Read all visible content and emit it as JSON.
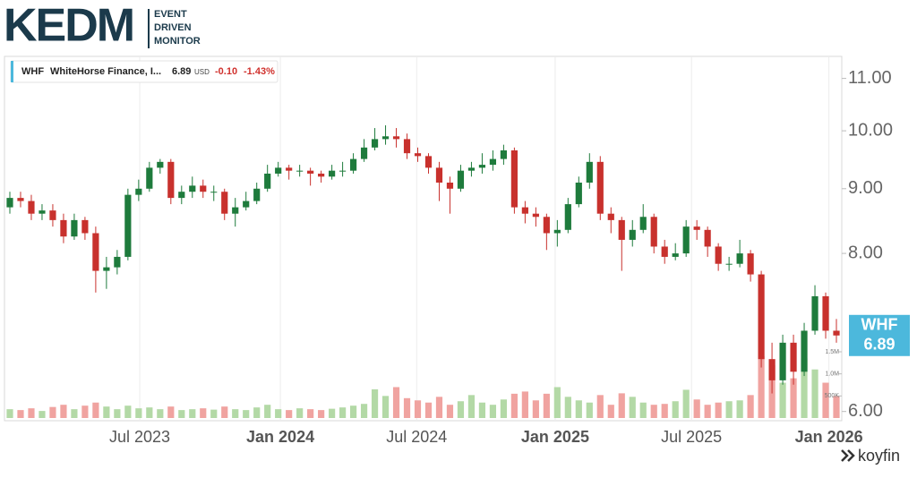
{
  "header": {
    "logo": "KEDM",
    "tagline": [
      "EVENT",
      "DRIVEN",
      "MONITOR"
    ]
  },
  "ticker_box": {
    "symbol": "WHF",
    "name": "WhiteHorse Finance, I...",
    "price": "6.89",
    "currency": "USD",
    "change": "-0.10",
    "change_pct": "-1.43%"
  },
  "chart_data": {
    "type": "candlestick",
    "symbol": "WHF",
    "open": [
      8.7,
      8.85,
      8.8,
      8.6,
      8.65,
      8.5,
      8.25,
      8.5,
      8.3,
      7.75,
      7.8,
      7.95,
      8.9,
      9.0,
      9.35,
      9.45,
      8.85,
      8.95,
      9.05,
      8.95,
      8.95,
      8.6,
      8.7,
      8.8,
      9.0,
      9.25,
      9.35,
      9.3,
      9.3,
      9.25,
      9.2,
      9.3,
      9.3,
      9.5,
      9.7,
      9.85,
      9.9,
      9.85,
      9.6,
      9.55,
      9.35,
      9.1,
      9.0,
      9.3,
      9.35,
      9.4,
      9.5,
      9.65,
      8.7,
      8.6,
      8.55,
      8.3,
      8.35,
      8.75,
      9.1,
      9.45,
      8.6,
      8.5,
      8.2,
      8.35,
      8.55,
      8.1,
      7.95,
      8.0,
      8.4,
      8.35,
      8.1,
      7.85,
      7.85,
      8.0,
      7.7,
      6.6,
      6.35,
      6.8,
      6.45,
      6.95,
      7.4,
      6.95
    ],
    "high": [
      8.95,
      8.95,
      8.9,
      8.75,
      8.75,
      8.6,
      8.6,
      8.55,
      8.4,
      7.95,
      8.05,
      9.0,
      9.15,
      9.45,
      9.5,
      9.5,
      9.05,
      9.2,
      9.15,
      9.05,
      9.0,
      8.85,
      8.95,
      9.1,
      9.4,
      9.45,
      9.4,
      9.4,
      9.35,
      9.3,
      9.4,
      9.45,
      9.6,
      9.85,
      10.05,
      10.1,
      10.05,
      9.95,
      9.7,
      9.6,
      9.45,
      9.2,
      9.4,
      9.45,
      9.6,
      9.65,
      9.75,
      9.7,
      8.8,
      8.7,
      8.6,
      8.5,
      8.85,
      9.2,
      9.6,
      9.55,
      8.7,
      8.55,
      8.5,
      8.75,
      8.6,
      8.2,
      8.15,
      8.5,
      8.5,
      8.4,
      8.15,
      7.95,
      8.2,
      8.05,
      7.75,
      6.8,
      6.9,
      6.9,
      7.05,
      7.55,
      7.45,
      7.1
    ],
    "low": [
      8.6,
      8.7,
      8.5,
      8.5,
      8.4,
      8.15,
      8.2,
      8.2,
      7.45,
      7.5,
      7.7,
      7.9,
      8.8,
      8.95,
      9.25,
      8.75,
      8.75,
      8.85,
      8.85,
      8.8,
      8.5,
      8.4,
      8.65,
      8.75,
      8.95,
      9.2,
      9.15,
      9.2,
      9.05,
      9.1,
      9.15,
      9.2,
      9.25,
      9.45,
      9.65,
      9.75,
      9.7,
      9.5,
      9.45,
      9.25,
      8.8,
      8.6,
      8.95,
      9.2,
      9.25,
      9.3,
      9.4,
      8.6,
      8.45,
      8.4,
      8.05,
      8.1,
      8.3,
      8.7,
      9.0,
      8.5,
      8.3,
      7.75,
      8.1,
      8.3,
      8.0,
      7.85,
      7.9,
      7.95,
      8.2,
      7.95,
      7.75,
      7.75,
      7.8,
      7.6,
      6.5,
      6.2,
      6.3,
      6.3,
      6.4,
      6.9,
      6.85,
      6.8
    ],
    "close": [
      8.85,
      8.8,
      8.6,
      8.65,
      8.5,
      8.25,
      8.5,
      8.3,
      7.75,
      7.8,
      7.95,
      8.9,
      9.0,
      9.35,
      9.45,
      8.85,
      8.95,
      9.05,
      8.95,
      8.95,
      8.6,
      8.7,
      8.8,
      9.0,
      9.25,
      9.35,
      9.3,
      9.3,
      9.25,
      9.2,
      9.3,
      9.3,
      9.5,
      9.7,
      9.85,
      9.9,
      9.85,
      9.6,
      9.55,
      9.35,
      9.1,
      9.0,
      9.3,
      9.35,
      9.4,
      9.5,
      9.65,
      8.7,
      8.6,
      8.55,
      8.3,
      8.35,
      8.75,
      9.1,
      9.45,
      8.6,
      8.5,
      8.2,
      8.35,
      8.55,
      8.1,
      7.95,
      8.0,
      8.4,
      8.35,
      8.1,
      7.85,
      7.85,
      8.0,
      7.7,
      6.6,
      6.35,
      6.8,
      6.45,
      6.95,
      7.4,
      6.95,
      6.89
    ],
    "volume": [
      200000,
      180000,
      220000,
      160000,
      250000,
      300000,
      200000,
      280000,
      350000,
      260000,
      200000,
      280000,
      220000,
      240000,
      200000,
      260000,
      180000,
      200000,
      220000,
      190000,
      260000,
      200000,
      180000,
      240000,
      300000,
      200000,
      180000,
      220000,
      200000,
      180000,
      210000,
      240000,
      280000,
      320000,
      650000,
      500000,
      700000,
      450000,
      400000,
      350000,
      480000,
      300000,
      380000,
      520000,
      350000,
      300000,
      420000,
      550000,
      600000,
      400000,
      550000,
      700000,
      480000,
      400000,
      350000,
      520000,
      300000,
      560000,
      480000,
      350000,
      300000,
      320000,
      380000,
      640000,
      420000,
      300000,
      350000,
      380000,
      400000,
      520000,
      1400000,
      1200000,
      800000,
      900000,
      1350000,
      1100000,
      800000,
      500000
    ],
    "up_color": "#1e7b3c",
    "down_color": "#c8312d",
    "up_volume_color": "#b3d9a6",
    "down_volume_color": "#f0a3a0",
    "label_color": "#4cb8dc",
    "log_scale": true,
    "ylim": [
      5.9,
      11.45
    ],
    "yticks": [
      {
        "value": 6,
        "label": "6.00"
      },
      {
        "value": 8,
        "label": "8.00"
      },
      {
        "value": 9,
        "label": "9.00"
      },
      {
        "value": 10,
        "label": "10.00"
      },
      {
        "value": 11,
        "label": "11.00"
      }
    ],
    "xlim": [
      -0.5,
      77.5
    ],
    "xticks": [
      {
        "value": 12.1,
        "label": "Jul 2023"
      },
      {
        "value": 25.2,
        "label": "Jan 2024"
      },
      {
        "value": 37.9,
        "label": "Jul 2024"
      },
      {
        "value": 50.8,
        "label": "Jan 2025"
      },
      {
        "value": 63.5,
        "label": "Jul 2025"
      },
      {
        "value": 76.3,
        "label": "Jan 2026"
      }
    ],
    "volume_lim": [
      0,
      1500000
    ],
    "volume_ticks": [
      {
        "value": 500000,
        "label": "500K"
      },
      {
        "value": 1000000,
        "label": "1.0M"
      },
      {
        "value": 1500000,
        "label": "1.5M"
      }
    ],
    "grid": true
  },
  "footer": {
    "brand": "koyfin"
  }
}
